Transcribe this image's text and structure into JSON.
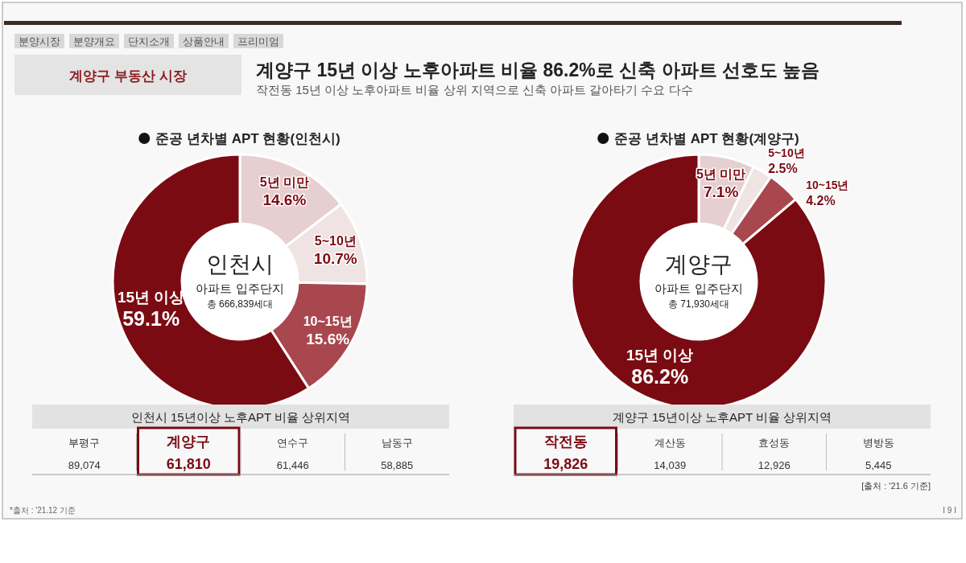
{
  "chart_data": [
    {
      "type": "other",
      "title": "계양구 15년 이상 노후아파트 비율 86.2%로 신축 아파트 선호도 높음",
      "subtitle": "작전동 15년 이상 노후아파트 비율 상위 지역으로 신축 아파트 갈아타기 수요 다수",
      "annotations": [
        "분양시장",
        "분양개요",
        "단지소개",
        "상품안내",
        "프리미엄",
        "계양구 부동산 시장",
        "*출처 : '21.12 기준",
        "I 9 I"
      ]
    },
    {
      "type": "donut",
      "title": "준공 년차별 APT 현황(인천시)",
      "categories": [
        "5년 미만",
        "5~10년",
        "10~15년",
        "15년 이상"
      ],
      "values": [
        14.6,
        10.7,
        15.6,
        59.1
      ],
      "value_labels": [
        "14.6%",
        "10.7%",
        "15.6%",
        "59.1%"
      ],
      "colors": [
        "#e6cfd0",
        "#efe3e3",
        "#a9474e",
        "#7b0b12"
      ],
      "annotations": [
        "인천시",
        "아파트 입주단지",
        "총 666,839세대"
      ]
    },
    {
      "type": "other",
      "title": "인천시 15년이상 노후APT 비율 상위지역",
      "categories": [
        "부평구",
        "계양구",
        "연수구",
        "남동구"
      ],
      "values": [
        89074,
        61810,
        61446,
        58885
      ],
      "value_labels": [
        "89,074",
        "61,810",
        "61,446",
        "58,885"
      ],
      "colors": [
        "#333333",
        "#7b0b12",
        "#333333",
        "#333333"
      ]
    },
    {
      "type": "donut",
      "title": "준공 년차별 APT 현황(계양구)",
      "categories": [
        "5년 미만",
        "5~10년",
        "10~15년",
        "15년 이상"
      ],
      "values": [
        7.1,
        2.5,
        4.2,
        86.2
      ],
      "value_labels": [
        "7.1%",
        "2.5%",
        "4.2%",
        "86.2%"
      ],
      "colors": [
        "#e6cfd0",
        "#efe3e3",
        "#a9474e",
        "#7b0b12"
      ],
      "annotations": [
        "계양구",
        "아파트 입주단지",
        "총 71,930세대"
      ]
    },
    {
      "type": "other",
      "title": "계양구 15년이상 노후APT 비율 상위지역",
      "categories": [
        "작전동",
        "계산동",
        "효성동",
        "병방동"
      ],
      "values": [
        19826,
        14039,
        12926,
        5445
      ],
      "value_labels": [
        "19,826",
        "14,039",
        "12,926",
        "5,445"
      ],
      "colors": [
        "#7b0b12",
        "#333333",
        "#333333",
        "#333333"
      ],
      "annotations": [
        "[출처 : '21.6 기준]"
      ]
    }
  ]
}
